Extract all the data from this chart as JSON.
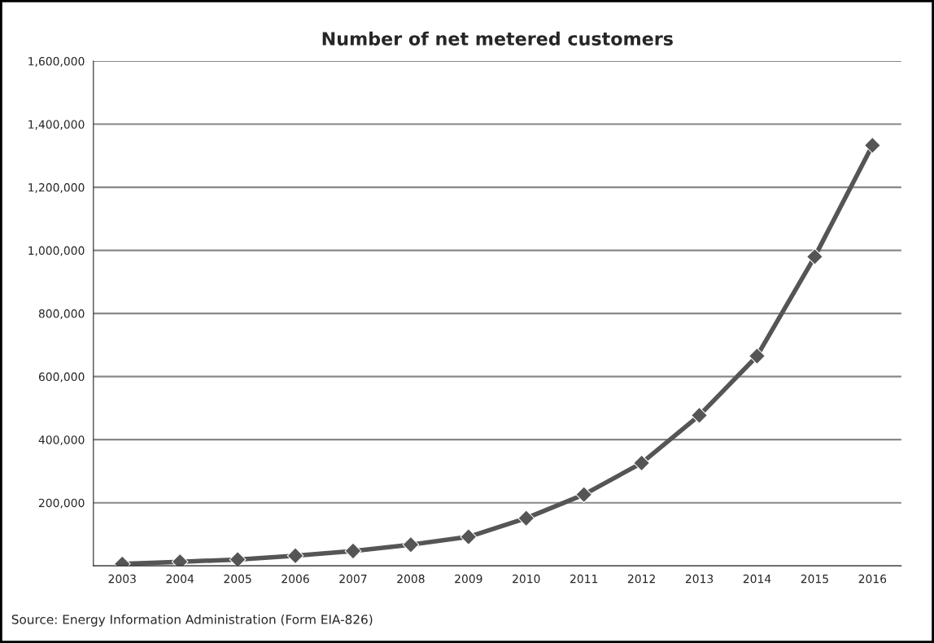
{
  "chart_data": {
    "type": "line",
    "title": "Number of net metered customers",
    "categories": [
      "2003",
      "2004",
      "2005",
      "2006",
      "2007",
      "2008",
      "2009",
      "2010",
      "2011",
      "2012",
      "2013",
      "2014",
      "2015",
      "2016"
    ],
    "series": [
      {
        "color": "#555555",
        "values": [
          6000,
          13000,
          20000,
          32000,
          47000,
          67000,
          92000,
          151000,
          226000,
          326000,
          477000,
          665000,
          980000,
          1333000
        ]
      }
    ],
    "ylim": [
      0,
      1600000
    ],
    "yticks": [
      {
        "value": 0,
        "label": null
      },
      {
        "value": 200000,
        "label": "200,000"
      },
      {
        "value": 400000,
        "label": "400,000"
      },
      {
        "value": 600000,
        "label": "600,000"
      },
      {
        "value": 800000,
        "label": "800,000"
      },
      {
        "value": 1000000,
        "label": "1,000,000"
      },
      {
        "value": 1200000,
        "label": "1,200,000"
      },
      {
        "value": 1400000,
        "label": "1,400,000"
      },
      {
        "value": 1600000,
        "label": "1,600,000"
      }
    ],
    "grid": "y",
    "marker": "diamond",
    "line_style": "solid",
    "annotations": [
      "Source: Energy Information Administration (Form EIA-826)"
    ]
  }
}
